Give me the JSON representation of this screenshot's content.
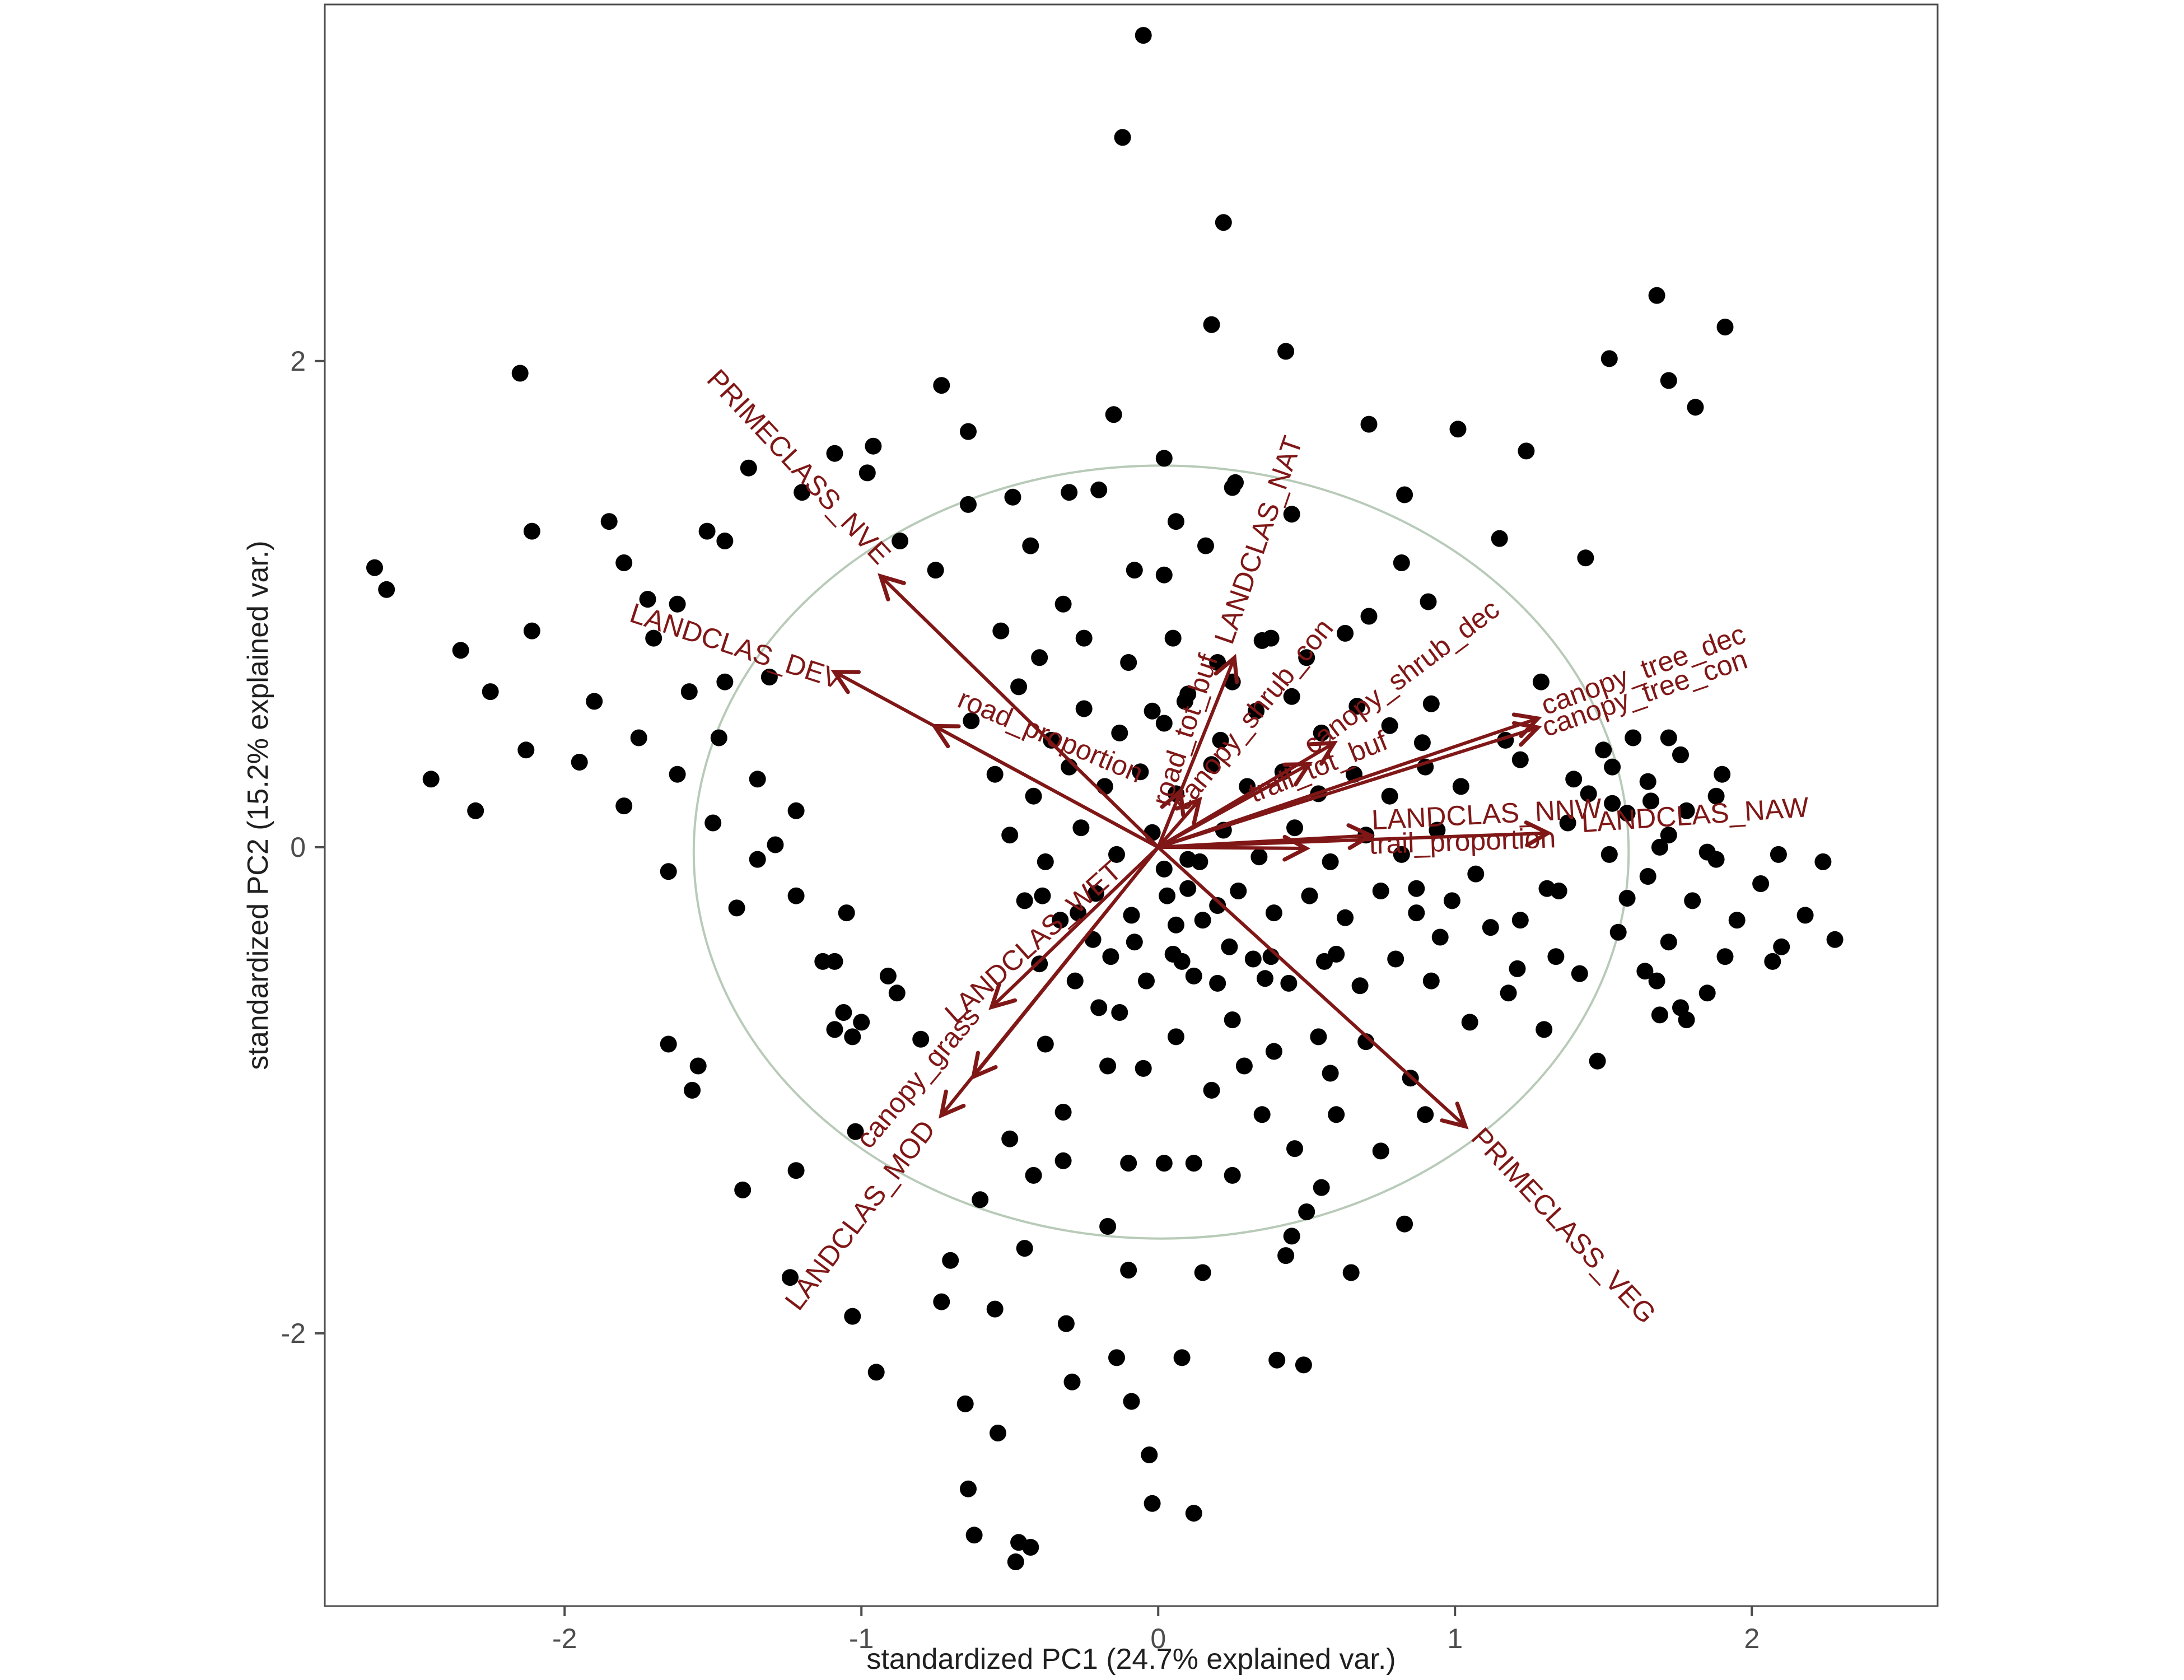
{
  "figure": {
    "kind": "PCA biplot",
    "background": "#ffffff",
    "panel_border_color": "#4d4d4d",
    "tick_color": "#4d4d4d",
    "tick_label_color": "#4d4d4d",
    "axis_title_color": "#1f1f1f"
  },
  "chart_data": {
    "type": "scatter",
    "title": "",
    "xlabel": "standardized PC1 (24.7% explained var.)",
    "ylabel": "standardized PC2 (15.2% explained var.)",
    "xlim": [
      -2.808,
      2.626
    ],
    "ylim": [
      -3.122,
      3.467
    ],
    "x_ticks": [
      -2,
      -1,
      0,
      1,
      2
    ],
    "y_ticks": [
      -2,
      0,
      2
    ],
    "grid": false,
    "legend": "none",
    "point_color": "#000000",
    "point_radius_px": 15,
    "loading_color": "#801717",
    "circle_color": "#b8cab8",
    "unit_circle": {
      "cx": 0.01,
      "cy": -0.02,
      "rx": 1.575,
      "ry": 1.59
    },
    "loadings": [
      {
        "name": "PRIMECLASS_NVE",
        "x": -0.932,
        "y": 1.111,
        "label_x": -1.234,
        "label_y": 1.539,
        "label_angle": 47
      },
      {
        "name": "LANDCLAS_DEV",
        "x": -1.087,
        "y": 0.719,
        "label_x": -1.432,
        "label_y": 0.79,
        "label_angle": 18
      },
      {
        "name": "road_proportion",
        "x": -0.75,
        "y": 0.496,
        "label_x": -0.375,
        "label_y": 0.422,
        "label_angle": 23
      },
      {
        "name": "LANDCLAS_NAT",
        "x": 0.255,
        "y": 0.774,
        "label_x": 0.368,
        "label_y": 1.251,
        "label_angle": -71
      },
      {
        "name": "road_tot_buf",
        "x": 0.074,
        "y": 0.226,
        "label_x": 0.12,
        "label_y": 0.47,
        "label_angle": -72
      },
      {
        "name": "canopy_shrub_con",
        "x": 0.136,
        "y": 0.191,
        "label_x": 0.343,
        "label_y": 0.521,
        "label_angle": -51
      },
      {
        "name": "canopy_shrub_dec",
        "x": 0.589,
        "y": 0.426,
        "label_x": 0.838,
        "label_y": 0.67,
        "label_angle": -37
      },
      {
        "name": "trail_tot_buf",
        "x": 0.504,
        "y": 0.339,
        "label_x": 0.551,
        "label_y": 0.295,
        "label_angle": -22
      },
      {
        "name": "canopy_tree_dec",
        "x": 1.275,
        "y": 0.528,
        "label_x": 1.645,
        "label_y": 0.694,
        "label_angle": -20
      },
      {
        "name": "canopy_tree_con",
        "x": 1.275,
        "y": 0.491,
        "label_x": 1.649,
        "label_y": 0.597,
        "label_angle": -19
      },
      {
        "name": "LANDCLAS_NNW",
        "x": 0.711,
        "y": 0.048,
        "label_x": 1.108,
        "label_y": 0.097,
        "label_angle": -3
      },
      {
        "name": "LANDCLAS_NAW",
        "x": 1.309,
        "y": 0.058,
        "label_x": 1.811,
        "label_y": 0.094,
        "label_angle": -4
      },
      {
        "name": "trail_proportion",
        "x": 0.494,
        "y": -0.005,
        "label_x": 1.026,
        "label_y": -0.014,
        "label_angle": -2
      },
      {
        "name": "LANDCLAS_WET",
        "x": -0.558,
        "y": -0.654,
        "label_x": -0.4,
        "label_y": -0.419,
        "label_angle": -42
      },
      {
        "name": "canopy_grass",
        "x": -0.728,
        "y": -1.099,
        "label_x": -0.785,
        "label_y": -0.972,
        "label_angle": -50
      },
      {
        "name": "LANDCLAS_MOD",
        "x": -0.62,
        "y": -0.94,
        "label_x": -0.979,
        "label_y": -1.537,
        "label_angle": -53
      },
      {
        "name": "PRIMECLASS_VEG",
        "x": 1.032,
        "y": -1.145,
        "label_x": 1.343,
        "label_y": -1.583,
        "label_angle": 47
      }
    ],
    "points": [
      [
        -0.05,
        3.34
      ],
      [
        -0.12,
        2.92
      ],
      [
        0.22,
        2.57
      ],
      [
        0.43,
        2.04
      ],
      [
        0.18,
        2.15
      ],
      [
        -2.15,
        1.95
      ],
      [
        1.68,
        2.27
      ],
      [
        1.91,
        2.14
      ],
      [
        1.52,
        2.01
      ],
      [
        1.72,
        1.92
      ],
      [
        1.81,
        1.81
      ],
      [
        0.71,
        1.74
      ],
      [
        1.01,
        1.72
      ],
      [
        1.24,
        1.63
      ],
      [
        -0.73,
        1.9
      ],
      [
        -0.64,
        1.71
      ],
      [
        -0.96,
        1.65
      ],
      [
        -1.09,
        1.62
      ],
      [
        -0.98,
        1.54
      ],
      [
        -1.38,
        1.56
      ],
      [
        -0.15,
        1.78
      ],
      [
        -2.64,
        1.15
      ],
      [
        -2.6,
        1.06
      ],
      [
        -2.11,
        1.3
      ],
      [
        -1.85,
        1.34
      ],
      [
        -1.52,
        1.3
      ],
      [
        -1.46,
        1.26
      ],
      [
        -1.2,
        1.46
      ],
      [
        -0.87,
        1.26
      ],
      [
        -0.75,
        1.14
      ],
      [
        -0.64,
        1.41
      ],
      [
        -0.49,
        1.44
      ],
      [
        -0.3,
        1.46
      ],
      [
        -0.2,
        1.47
      ],
      [
        0.02,
        1.6
      ],
      [
        0.26,
        1.5
      ],
      [
        0.45,
        1.37
      ],
      [
        0.83,
        1.45
      ],
      [
        1.15,
        1.27
      ],
      [
        1.44,
        1.19
      ],
      [
        -2.11,
        0.89
      ],
      [
        -1.8,
        1.17
      ],
      [
        -1.72,
        1.02
      ],
      [
        -1.62,
        1.0
      ],
      [
        -1.7,
        0.86
      ],
      [
        0.06,
        1.34
      ],
      [
        0.16,
        1.24
      ],
      [
        0.02,
        1.12
      ],
      [
        0.25,
        1.48
      ],
      [
        -0.53,
        0.89
      ],
      [
        -0.43,
        1.24
      ],
      [
        -0.32,
        1.0
      ],
      [
        -0.08,
        1.14
      ],
      [
        0.71,
        0.95
      ],
      [
        0.82,
        1.17
      ],
      [
        0.91,
        1.01
      ],
      [
        0.38,
        0.86
      ],
      [
        0.25,
        0.68
      ],
      [
        0.09,
        0.6
      ],
      [
        0.02,
        0.51
      ],
      [
        1.29,
        0.68
      ],
      [
        0.92,
        0.59
      ],
      [
        1.17,
        0.44
      ],
      [
        1.22,
        0.36
      ],
      [
        -1.58,
        0.64
      ],
      [
        -1.46,
        0.68
      ],
      [
        -1.31,
        0.7
      ],
      [
        -2.35,
        0.81
      ],
      [
        -2.25,
        0.64
      ],
      [
        -2.13,
        0.4
      ],
      [
        -2.45,
        0.28
      ],
      [
        -2.3,
        0.15
      ],
      [
        -1.75,
        0.45
      ],
      [
        -1.9,
        0.6
      ],
      [
        -1.62,
        0.3
      ],
      [
        -1.48,
        0.45
      ],
      [
        -1.8,
        0.17
      ],
      [
        -1.95,
        0.35
      ],
      [
        -1.35,
        0.28
      ],
      [
        -1.22,
        0.15
      ],
      [
        -1.35,
        -0.05
      ],
      [
        -1.5,
        0.1
      ],
      [
        -1.65,
        -0.1
      ],
      [
        -1.42,
        -0.25
      ],
      [
        -1.29,
        0.01
      ],
      [
        -1.22,
        -0.2
      ],
      [
        -1.05,
        -0.27
      ],
      [
        -1.09,
        -0.47
      ],
      [
        -1.13,
        -0.47
      ],
      [
        -1.06,
        -0.68
      ],
      [
        -1.09,
        -0.75
      ],
      [
        -1.03,
        -0.78
      ],
      [
        -1.0,
        -0.72
      ],
      [
        -1.65,
        -0.81
      ],
      [
        -1.55,
        -0.9
      ],
      [
        -1.57,
        -1.0
      ],
      [
        -0.91,
        -0.53
      ],
      [
        -0.88,
        -0.6
      ],
      [
        -0.8,
        -0.79
      ],
      [
        -1.02,
        -1.17
      ],
      [
        -1.22,
        -1.33
      ],
      [
        -1.4,
        -1.41
      ],
      [
        -1.24,
        -1.77
      ],
      [
        -1.03,
        -1.93
      ],
      [
        -0.95,
        -2.16
      ],
      [
        -0.73,
        -1.87
      ],
      [
        -0.65,
        -2.29
      ],
      [
        -0.54,
        -2.41
      ],
      [
        -0.64,
        -2.64
      ],
      [
        -0.62,
        -2.83
      ],
      [
        -0.47,
        -2.86
      ],
      [
        -0.43,
        -2.88
      ],
      [
        -0.48,
        -2.94
      ],
      [
        -0.39,
        -0.2
      ],
      [
        -0.27,
        -0.27
      ],
      [
        -0.22,
        -0.38
      ],
      [
        -0.08,
        -0.39
      ],
      [
        -0.2,
        -0.66
      ],
      [
        -0.13,
        -0.68
      ],
      [
        -0.38,
        -0.81
      ],
      [
        -0.32,
        -1.09
      ],
      [
        -0.17,
        -0.9
      ],
      [
        -0.05,
        -0.91
      ],
      [
        -0.1,
        -1.3
      ],
      [
        -0.32,
        -1.29
      ],
      [
        -0.17,
        -1.56
      ],
      [
        -0.1,
        -1.74
      ],
      [
        -0.31,
        -1.96
      ],
      [
        -0.29,
        -2.2
      ],
      [
        -0.14,
        -2.1
      ],
      [
        -0.09,
        -2.28
      ],
      [
        -0.03,
        -2.5
      ],
      [
        0.02,
        -0.09
      ],
      [
        0.06,
        -0.32
      ],
      [
        0.1,
        -0.17
      ],
      [
        0.14,
        -0.06
      ],
      [
        0.2,
        -0.24
      ],
      [
        0.05,
        -0.44
      ],
      [
        0.12,
        -0.53
      ],
      [
        0.06,
        -0.78
      ],
      [
        0.18,
        -1.0
      ],
      [
        0.12,
        -1.3
      ],
      [
        0.02,
        -1.3
      ],
      [
        0.24,
        -0.41
      ],
      [
        0.25,
        -0.71
      ],
      [
        0.36,
        -0.54
      ],
      [
        0.39,
        -0.84
      ],
      [
        0.29,
        -0.9
      ],
      [
        0.54,
        -0.78
      ],
      [
        0.58,
        -0.93
      ],
      [
        0.38,
        -0.45
      ],
      [
        0.46,
        -1.24
      ],
      [
        0.43,
        -1.68
      ],
      [
        0.5,
        -1.5
      ],
      [
        0.4,
        -2.11
      ],
      [
        0.49,
        -2.13
      ],
      [
        0.08,
        -2.1
      ],
      [
        -0.02,
        -2.7
      ],
      [
        0.12,
        -2.74
      ],
      [
        0.6,
        -0.44
      ],
      [
        1.07,
        -0.11
      ],
      [
        0.87,
        -0.17
      ],
      [
        0.95,
        -0.37
      ],
      [
        1.21,
        -0.5
      ],
      [
        1.31,
        -0.17
      ],
      [
        1.58,
        -0.21
      ],
      [
        1.64,
        -0.51
      ],
      [
        1.48,
        -0.88
      ],
      [
        0.7,
        -0.8
      ],
      [
        0.85,
        -0.95
      ],
      [
        0.6,
        -1.1
      ],
      [
        0.75,
        -1.25
      ],
      [
        0.9,
        -1.1
      ],
      [
        0.55,
        -1.4
      ],
      [
        0.35,
        -1.1
      ],
      [
        0.25,
        -1.35
      ],
      [
        0.45,
        -1.6
      ],
      [
        0.15,
        -1.75
      ],
      [
        0.65,
        -1.75
      ],
      [
        0.83,
        -1.55
      ],
      [
        -0.5,
        -1.2
      ],
      [
        -0.6,
        -1.45
      ],
      [
        -0.45,
        -1.65
      ],
      [
        -0.7,
        -1.7
      ],
      [
        -0.55,
        -1.9
      ],
      [
        -0.42,
        -1.35
      ],
      [
        1.05,
        -0.72
      ],
      [
        1.3,
        -0.75
      ],
      [
        1.12,
        -0.33
      ],
      [
        1.22,
        -0.3
      ],
      [
        1.34,
        -0.45
      ],
      [
        1.18,
        -0.6
      ],
      [
        1.4,
        0.28
      ],
      [
        1.53,
        0.33
      ],
      [
        1.65,
        0.27
      ],
      [
        1.66,
        0.19
      ],
      [
        1.53,
        0.18
      ],
      [
        1.78,
        0.15
      ],
      [
        1.88,
        0.21
      ],
      [
        1.72,
        0.45
      ],
      [
        2.07,
        -0.47
      ],
      [
        2.1,
        -0.41
      ],
      [
        2.28,
        -0.38
      ],
      [
        1.69,
        0.0
      ],
      [
        1.85,
        -0.02
      ],
      [
        2.09,
        -0.03
      ],
      [
        2.24,
        -0.06
      ],
      [
        1.69,
        -0.69
      ],
      [
        1.78,
        -0.71
      ],
      [
        1.91,
        -0.45
      ],
      [
        1.76,
        -0.66
      ],
      [
        1.72,
        -0.39
      ],
      [
        1.38,
        0.1
      ],
      [
        1.45,
        0.22
      ],
      [
        1.52,
        -0.03
      ],
      [
        1.58,
        0.14
      ],
      [
        1.65,
        -0.12
      ],
      [
        1.72,
        0.05
      ],
      [
        1.8,
        -0.22
      ],
      [
        1.88,
        -0.05
      ],
      [
        1.95,
        -0.3
      ],
      [
        2.03,
        -0.15
      ],
      [
        1.55,
        -0.35
      ],
      [
        1.42,
        -0.52
      ],
      [
        1.68,
        -0.55
      ],
      [
        1.85,
        -0.6
      ],
      [
        1.5,
        0.4
      ],
      [
        1.6,
        0.45
      ],
      [
        1.76,
        0.38
      ],
      [
        1.9,
        0.3
      ],
      [
        1.35,
        -0.18
      ],
      [
        2.18,
        -0.28
      ],
      [
        -0.63,
        0.52
      ],
      [
        -0.47,
        0.66
      ],
      [
        -0.36,
        0.44
      ],
      [
        -0.25,
        0.57
      ],
      [
        -0.13,
        0.47
      ],
      [
        -0.02,
        0.56
      ],
      [
        0.1,
        0.63
      ],
      [
        0.21,
        0.44
      ],
      [
        0.33,
        0.56
      ],
      [
        0.45,
        0.62
      ],
      [
        0.55,
        0.47
      ],
      [
        0.67,
        0.58
      ],
      [
        0.78,
        0.5
      ],
      [
        0.89,
        0.43
      ],
      [
        -0.55,
        0.3
      ],
      [
        -0.42,
        0.21
      ],
      [
        -0.3,
        0.33
      ],
      [
        -0.18,
        0.25
      ],
      [
        -0.06,
        0.31
      ],
      [
        0.06,
        0.22
      ],
      [
        0.18,
        0.34
      ],
      [
        0.3,
        0.25
      ],
      [
        0.42,
        0.31
      ],
      [
        0.54,
        0.22
      ],
      [
        0.66,
        0.3
      ],
      [
        0.78,
        0.21
      ],
      [
        0.9,
        0.33
      ],
      [
        1.02,
        0.25
      ],
      [
        -0.5,
        0.05
      ],
      [
        -0.38,
        -0.06
      ],
      [
        -0.26,
        0.08
      ],
      [
        -0.14,
        -0.03
      ],
      [
        -0.02,
        0.06
      ],
      [
        0.1,
        -0.05
      ],
      [
        0.22,
        0.07
      ],
      [
        0.34,
        -0.04
      ],
      [
        0.46,
        0.08
      ],
      [
        0.58,
        -0.06
      ],
      [
        0.7,
        0.05
      ],
      [
        0.82,
        -0.03
      ],
      [
        0.94,
        0.07
      ],
      [
        -0.45,
        -0.22
      ],
      [
        -0.33,
        -0.3
      ],
      [
        -0.21,
        -0.19
      ],
      [
        -0.09,
        -0.28
      ],
      [
        0.03,
        -0.2
      ],
      [
        0.15,
        -0.3
      ],
      [
        0.27,
        -0.18
      ],
      [
        0.39,
        -0.27
      ],
      [
        0.51,
        -0.2
      ],
      [
        0.63,
        -0.29
      ],
      [
        0.75,
        -0.18
      ],
      [
        0.87,
        -0.27
      ],
      [
        0.99,
        -0.22
      ],
      [
        -0.4,
        -0.48
      ],
      [
        -0.28,
        -0.55
      ],
      [
        -0.16,
        -0.45
      ],
      [
        -0.04,
        -0.55
      ],
      [
        0.08,
        -0.47
      ],
      [
        0.2,
        -0.56
      ],
      [
        0.32,
        -0.46
      ],
      [
        0.44,
        -0.56
      ],
      [
        0.56,
        -0.47
      ],
      [
        0.68,
        -0.57
      ],
      [
        0.8,
        -0.46
      ],
      [
        0.92,
        -0.55
      ],
      [
        0.63,
        0.88
      ],
      [
        0.5,
        0.78
      ],
      [
        0.35,
        0.85
      ],
      [
        0.2,
        0.76
      ],
      [
        0.05,
        0.86
      ],
      [
        -0.1,
        0.76
      ],
      [
        -0.25,
        0.86
      ],
      [
        -0.4,
        0.78
      ]
    ]
  }
}
